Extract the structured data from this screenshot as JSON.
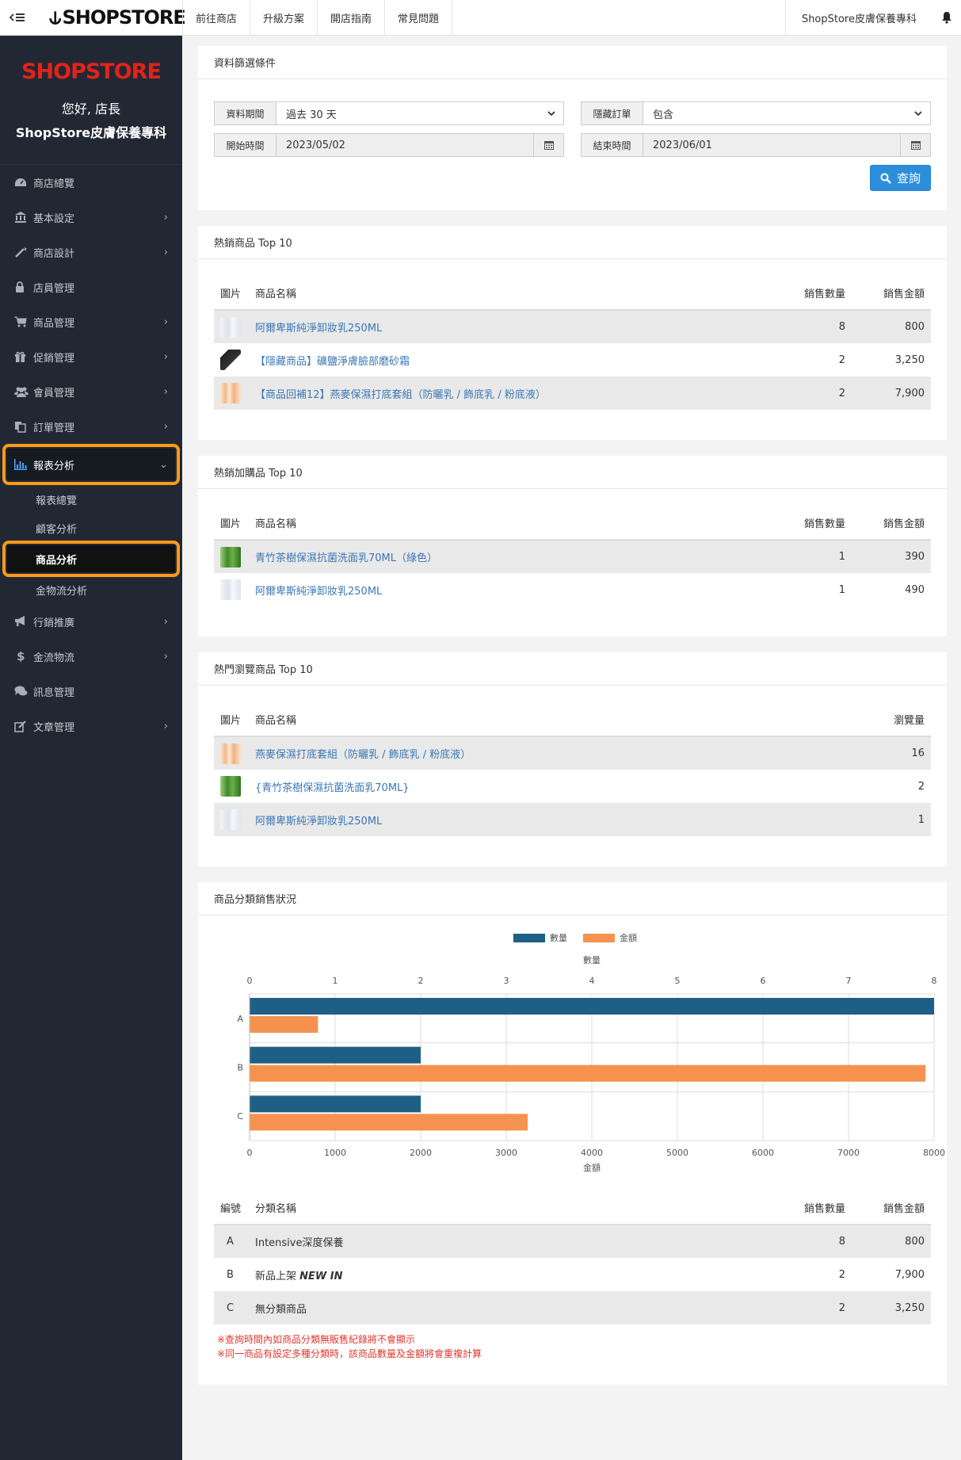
{
  "topbar": {
    "brand": "SHOPSTORE",
    "nav": [
      "前往商店",
      "升級方案",
      "開店指南",
      "常見問題"
    ],
    "store_name": "ShopStore皮膚保養專科"
  },
  "sidebar": {
    "logo": "SHOPSTORE",
    "greeting": "您好, 店長",
    "store_name": "ShopStore皮膚保養專科",
    "items": [
      {
        "label": "商店總覽",
        "icon": "dashboard-icon",
        "has_children": false
      },
      {
        "label": "基本設定",
        "icon": "bank-icon",
        "has_children": true
      },
      {
        "label": "商店設計",
        "icon": "magic-wand-icon",
        "has_children": true
      },
      {
        "label": "店員管理",
        "icon": "lock-icon",
        "has_children": false
      },
      {
        "label": "商品管理",
        "icon": "cart-icon",
        "has_children": true
      },
      {
        "label": "促銷管理",
        "icon": "gift-icon",
        "has_children": true
      },
      {
        "label": "會員管理",
        "icon": "users-icon",
        "has_children": true
      },
      {
        "label": "訂單管理",
        "icon": "copy-icon",
        "has_children": true
      }
    ],
    "active_item": {
      "label": "報表分析",
      "icon": "bar-chart-icon"
    },
    "subitems": [
      "報表總覽",
      "顧客分析",
      "商品分析",
      "金物流分析"
    ],
    "current_sub": "商品分析",
    "items_after": [
      {
        "label": "行銷推廣",
        "icon": "bullhorn-icon",
        "has_children": true
      },
      {
        "label": "金流物流",
        "icon": "dollar-icon",
        "has_children": true
      },
      {
        "label": "訊息管理",
        "icon": "comments-icon",
        "has_children": false
      },
      {
        "label": "文章管理",
        "icon": "edit-icon",
        "has_children": true
      }
    ]
  },
  "filter": {
    "title": "資料篩選條件",
    "period_label": "資料期間",
    "period_value": "過去 30 天",
    "hidden_label": "隱藏訂單",
    "hidden_value": "包含",
    "start_label": "開始時間",
    "start_value": "2023/05/02",
    "end_label": "結束時間",
    "end_value": "2023/06/01",
    "query_button": "查詢"
  },
  "hot_products": {
    "title": "熱銷商品 Top 10",
    "headers": [
      "圖片",
      "商品名稱",
      "銷售數量",
      "銷售金額"
    ],
    "rows": [
      {
        "thumb": "bottle",
        "name": "阿爾卑斯純淨卸妝乳250ML",
        "qty": "8",
        "amount": "800"
      },
      {
        "thumb": "black",
        "name": "【隱藏商品】礦鹽淨膚臉部磨砂霜",
        "qty": "2",
        "amount": "3,250"
      },
      {
        "thumb": "kit",
        "name": "【商品回補12】燕麥保濕打底套組（防曬乳 / 飾底乳 / 粉底液）",
        "qty": "2",
        "amount": "7,900"
      }
    ]
  },
  "addon_products": {
    "title": "熱銷加購品 Top 10",
    "headers": [
      "圖片",
      "商品名稱",
      "銷售數量",
      "銷售金額"
    ],
    "rows": [
      {
        "thumb": "green",
        "name": "青竹茶樹保濕抗菌洗面乳70ML（綠色）",
        "qty": "1",
        "amount": "390"
      },
      {
        "thumb": "bottle",
        "name": "阿爾卑斯純淨卸妝乳250ML",
        "qty": "1",
        "amount": "490"
      }
    ]
  },
  "viewed_products": {
    "title": "熱門瀏覽商品 Top 10",
    "headers": [
      "圖片",
      "商品名稱",
      "瀏覽量"
    ],
    "rows": [
      {
        "thumb": "kit",
        "name": "燕麥保濕打底套組（防曬乳 / 飾底乳 / 粉底液）",
        "views": "16"
      },
      {
        "thumb": "green",
        "name": "{青竹茶樹保濕抗菌洗面乳70ML}",
        "views": "2"
      },
      {
        "thumb": "bottle",
        "name": "阿爾卑斯純淨卸妝乳250ML",
        "views": "1"
      }
    ]
  },
  "category_sales": {
    "title": "商品分類銷售狀況",
    "headers": [
      "編號",
      "分類名稱",
      "銷售數量",
      "銷售金額"
    ],
    "rows": [
      {
        "id": "A",
        "name": "Intensive深度保養",
        "name_em": "",
        "qty": "8",
        "amount": "800"
      },
      {
        "id": "B",
        "name": "新品上架 ",
        "name_em": "NEW IN",
        "qty": "2",
        "amount": "7,900"
      },
      {
        "id": "C",
        "name": "無分類商品",
        "name_em": "",
        "qty": "2",
        "amount": "3,250"
      }
    ],
    "notes": [
      "※查詢時間內如商品分類無販售紀錄將不會顯示",
      "※同一商品有設定多種分類時，該商品數量及金額將會重複計算"
    ]
  },
  "chart_data": {
    "type": "bar",
    "orientation": "horizontal",
    "categories": [
      "A",
      "B",
      "C"
    ],
    "series": [
      {
        "name": "數量",
        "axis": "top",
        "color": "#1f5f86",
        "values": [
          8,
          2,
          2
        ]
      },
      {
        "name": "金額",
        "axis": "bottom",
        "color": "#f6924f",
        "values": [
          800,
          7900,
          3250
        ]
      }
    ],
    "top_axis": {
      "label": "數量",
      "range": [
        0,
        8
      ],
      "ticks": [
        "0",
        "1",
        "2",
        "3",
        "4",
        "5",
        "6",
        "7",
        "8"
      ]
    },
    "bottom_axis": {
      "label": "金額",
      "range": [
        0,
        8000
      ],
      "ticks": [
        "0",
        "1000",
        "2000",
        "3000",
        "4000",
        "5000",
        "6000",
        "7000",
        "8000"
      ]
    },
    "legend": "top-center",
    "grid": true
  }
}
